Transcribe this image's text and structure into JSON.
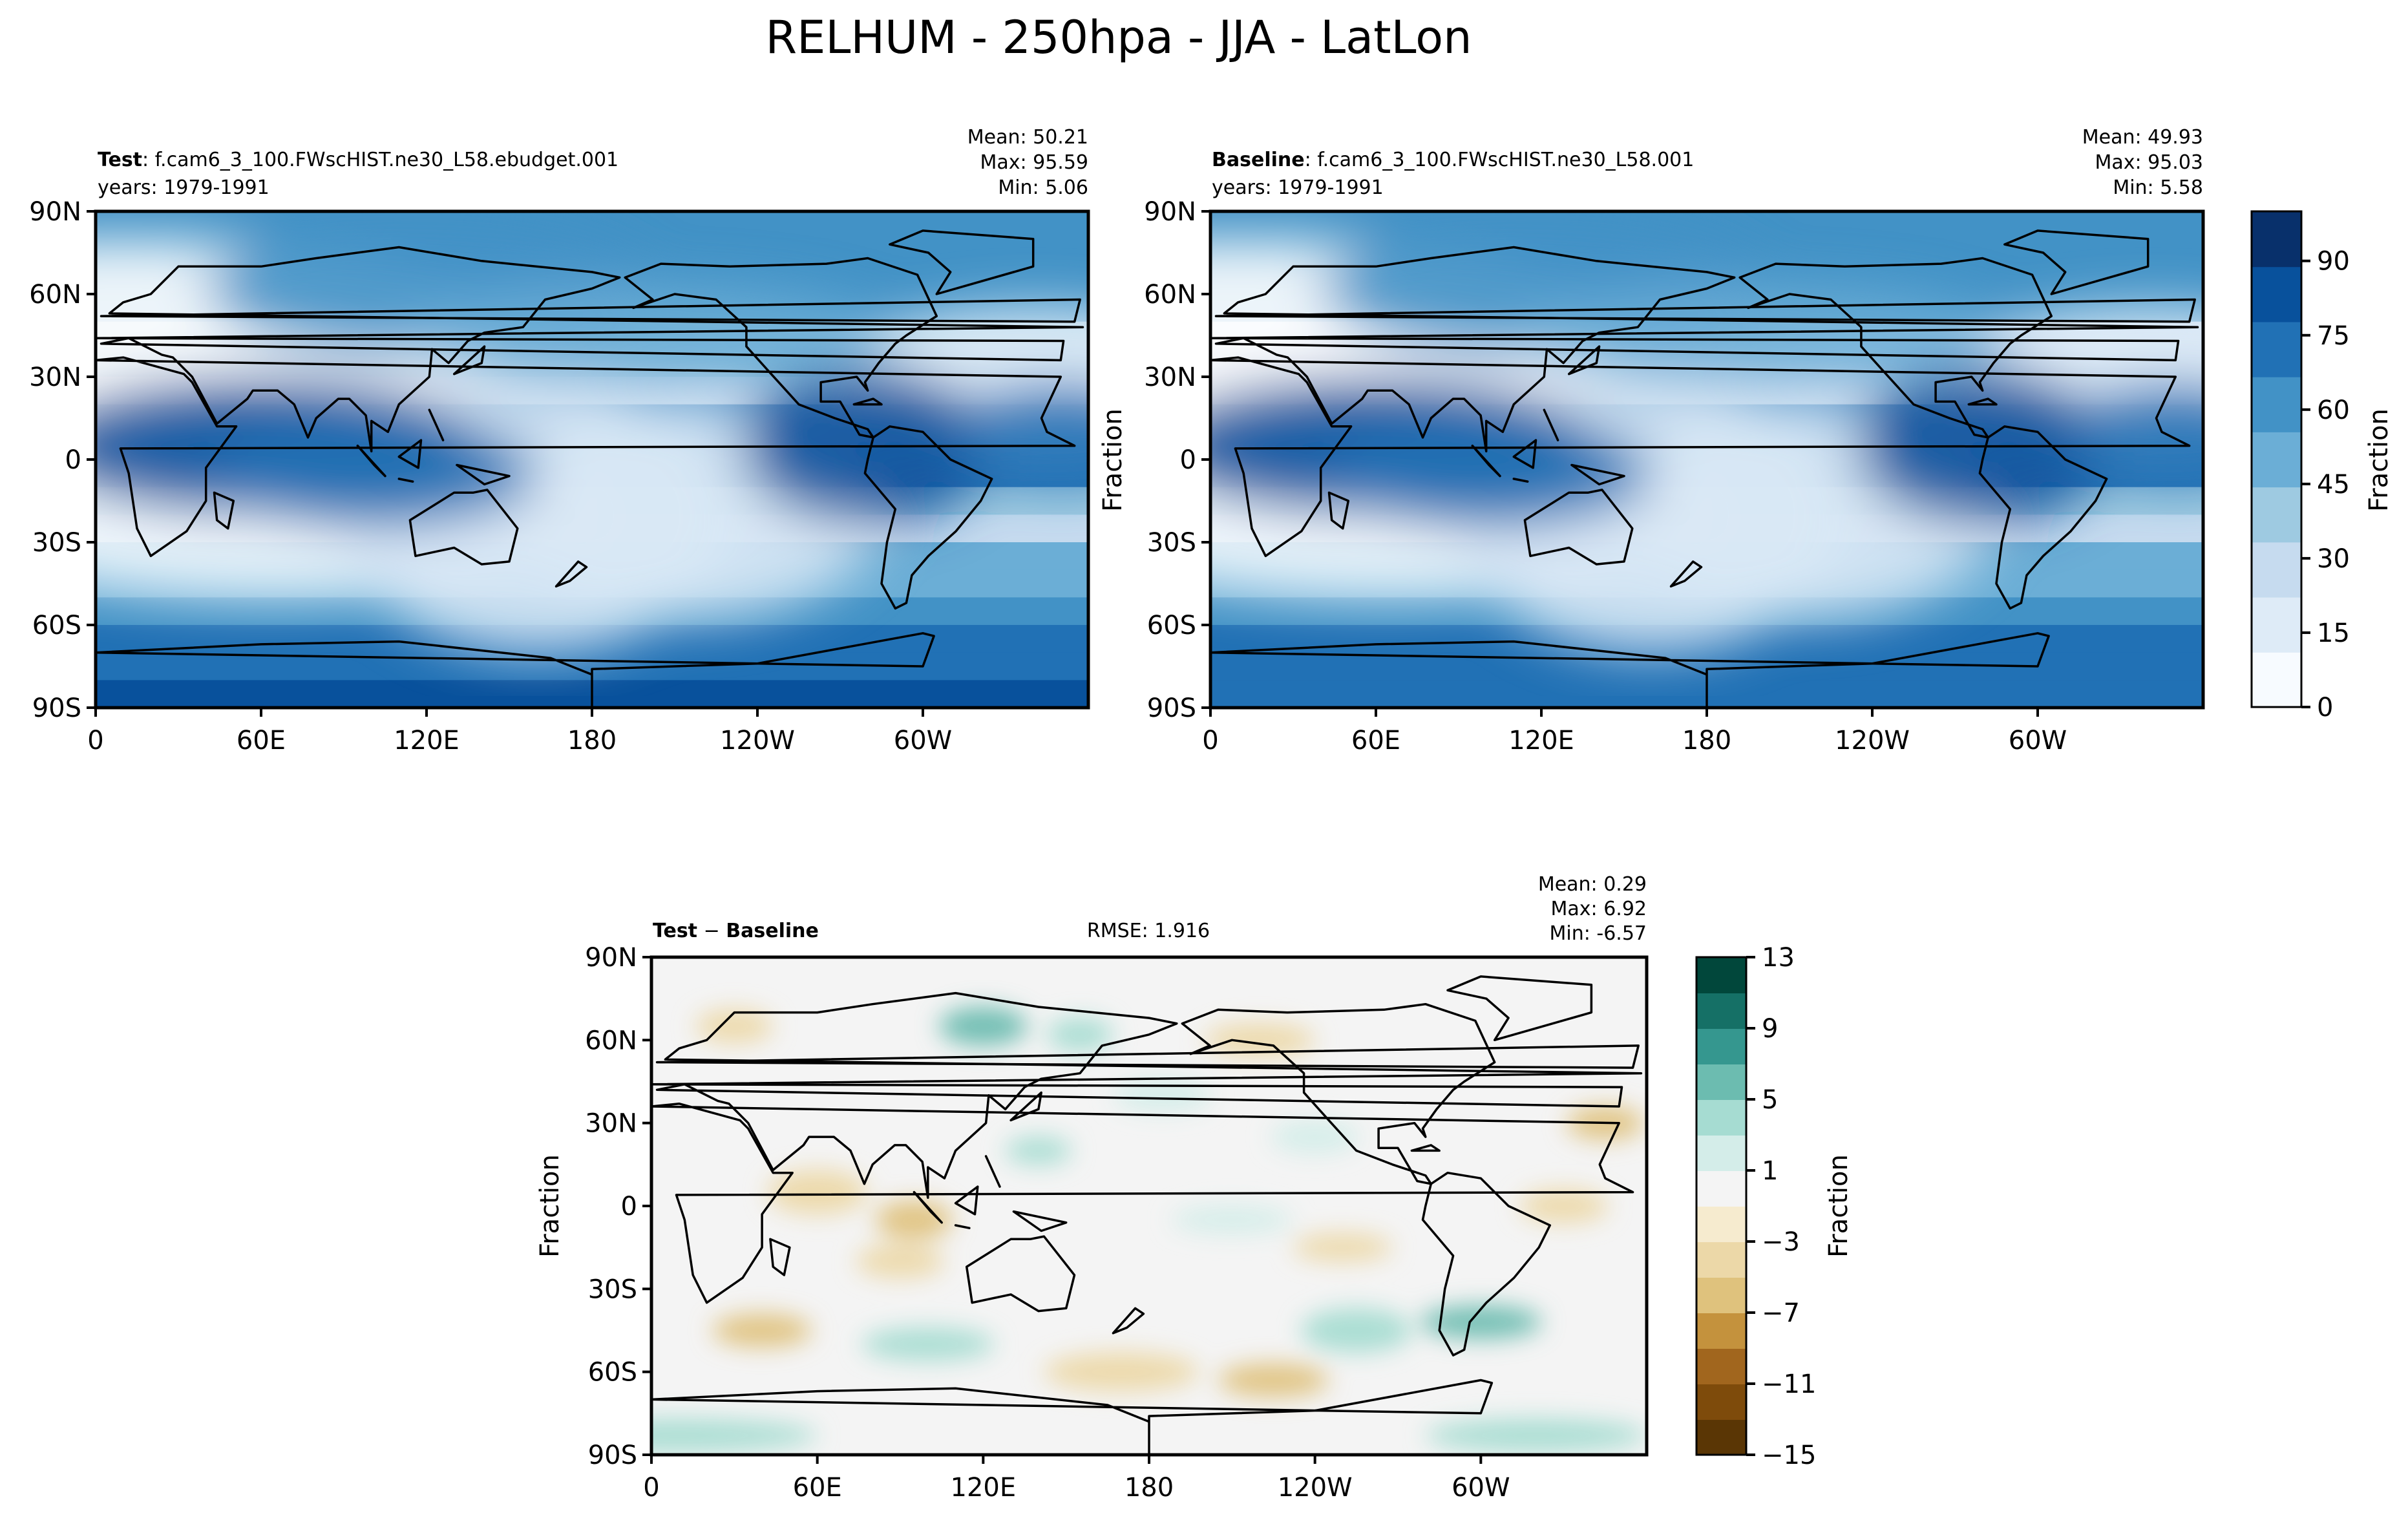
{
  "figure_title": "RELHUM - 250hpa - JJA - LatLon",
  "panels": {
    "test": {
      "label_bold": "Test",
      "label_rest": ": f.cam6_3_100.FWscHIST.ne30_L58.ebudget.001",
      "years": "years: 1979-1991",
      "mean": "Mean: 50.21",
      "max": "Max: 95.59",
      "min": "Min:  5.06"
    },
    "baseline": {
      "label_bold": "Baseline",
      "label_rest": ": f.cam6_3_100.FWscHIST.ne30_L58.001",
      "years": "years: 1979-1991",
      "mean": "Mean: 49.93",
      "max": "Max: 95.03",
      "min": "Min:  5.58",
      "ylabel": "Fraction"
    },
    "diff": {
      "label_test": "Test",
      "label_sep": " − ",
      "label_base": "Baseline",
      "rmse": "RMSE: 1.916",
      "mean": "Mean:  0.29",
      "max": "Max:  6.92",
      "min": "Min: -6.57",
      "ylabel": "Fraction"
    }
  },
  "colorbars": {
    "main": {
      "label": "Fraction",
      "ticks": [
        "0",
        "15",
        "30",
        "45",
        "60",
        "75",
        "90"
      ],
      "colors": [
        "#f7fbff",
        "#deebf7",
        "#c6dbef",
        "#9ecae1",
        "#6baed6",
        "#4292c6",
        "#2171b5",
        "#08519c",
        "#08306b"
      ]
    },
    "diff": {
      "label": "Fraction",
      "ticks": [
        "−15",
        "−11",
        "−7",
        "−3",
        "1",
        "5",
        "9",
        "13"
      ],
      "colors": [
        "#5a3605",
        "#7e4b0b",
        "#a1661e",
        "#c4923d",
        "#dfc27d",
        "#ecd8a8",
        "#f6ebcf",
        "#f4f4f4",
        "#d4ede9",
        "#a6dcd2",
        "#6cbcb0",
        "#35978f",
        "#157066",
        "#01473b"
      ]
    }
  },
  "axes": {
    "lat_ticks": [
      "90N",
      "60N",
      "30N",
      "0",
      "30S",
      "60S",
      "90S"
    ],
    "lon_ticks": [
      "0",
      "60E",
      "120E",
      "180",
      "120W",
      "60W"
    ]
  },
  "chart_data": [
    {
      "type": "heatmap",
      "panel": "test",
      "variable": "RELHUM",
      "level": "250hpa",
      "season": "JJA",
      "xlim": [
        0,
        360
      ],
      "ylim": [
        -90,
        90
      ],
      "value_range": [
        0,
        100
      ],
      "zonal_mean_profile": {
        "lat": [
          85,
          70,
          55,
          40,
          25,
          10,
          0,
          -10,
          -25,
          -40,
          -55,
          -70,
          -85
        ],
        "value": [
          60,
          58,
          62,
          34,
          30,
          72,
          68,
          40,
          28,
          48,
          62,
          70,
          78
        ]
      },
      "stats": {
        "mean": 50.21,
        "max": 95.59,
        "min": 5.06
      }
    },
    {
      "type": "heatmap",
      "panel": "baseline",
      "variable": "RELHUM",
      "level": "250hpa",
      "season": "JJA",
      "xlim": [
        0,
        360
      ],
      "ylim": [
        -90,
        90
      ],
      "value_range": [
        0,
        100
      ],
      "zonal_mean_profile": {
        "lat": [
          85,
          70,
          55,
          40,
          25,
          10,
          0,
          -10,
          -25,
          -40,
          -55,
          -70,
          -85
        ],
        "value": [
          59,
          57,
          61,
          33,
          30,
          71,
          67,
          40,
          28,
          48,
          61,
          69,
          77
        ]
      },
      "stats": {
        "mean": 49.93,
        "max": 95.03,
        "min": 5.58
      }
    },
    {
      "type": "heatmap",
      "panel": "test-baseline",
      "variable": "RELHUM",
      "xlim": [
        0,
        360
      ],
      "ylim": [
        -90,
        90
      ],
      "value_range": [
        -15,
        13
      ],
      "stats": {
        "mean": 0.29,
        "max": 6.92,
        "min": -6.57,
        "rmse": 1.916
      }
    }
  ]
}
